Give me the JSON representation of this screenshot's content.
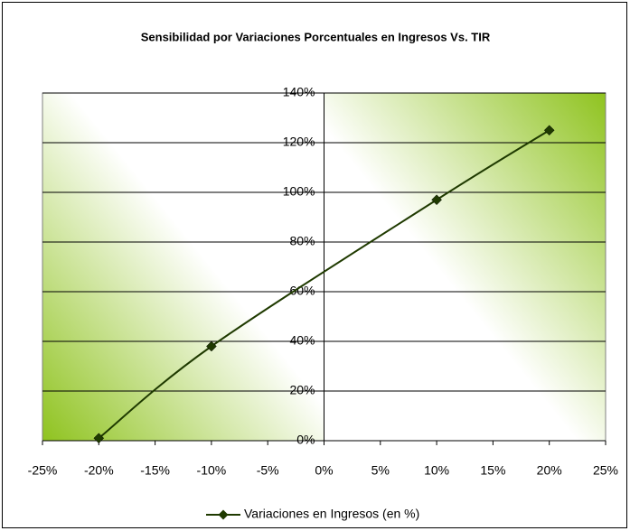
{
  "chart_data": {
    "type": "scatter",
    "title": "Sensibilidad por Variaciones Porcentuales en Ingresos Vs. TIR",
    "series": [
      {
        "name": "Variaciones en Ingresos (en %)",
        "color": "#1f3a00",
        "x": [
          -20,
          -10,
          10,
          20
        ],
        "values": [
          1,
          38,
          97,
          125
        ]
      }
    ],
    "xlim": [
      -25,
      25
    ],
    "xticks": [
      {
        "value": -25,
        "label": "-25%"
      },
      {
        "value": -20,
        "label": "-20%"
      },
      {
        "value": -15,
        "label": "-15%"
      },
      {
        "value": -10,
        "label": "-10%"
      },
      {
        "value": -5,
        "label": "-5%"
      },
      {
        "value": 0,
        "label": "0%"
      },
      {
        "value": 5,
        "label": "5%"
      },
      {
        "value": 10,
        "label": "10%"
      },
      {
        "value": 15,
        "label": "15%"
      },
      {
        "value": 20,
        "label": "20%"
      },
      {
        "value": 25,
        "label": "25%"
      }
    ],
    "ylim": [
      0,
      140
    ],
    "yticks": [
      {
        "value": 0,
        "label": "0%"
      },
      {
        "value": 20,
        "label": "20%"
      },
      {
        "value": 40,
        "label": "40%"
      },
      {
        "value": 60,
        "label": "60%"
      },
      {
        "value": 80,
        "label": "80%"
      },
      {
        "value": 100,
        "label": "100%"
      },
      {
        "value": 120,
        "label": "120%"
      },
      {
        "value": 140,
        "label": "140%"
      }
    ],
    "grid": true,
    "legend": "bottom",
    "smooth": true
  }
}
